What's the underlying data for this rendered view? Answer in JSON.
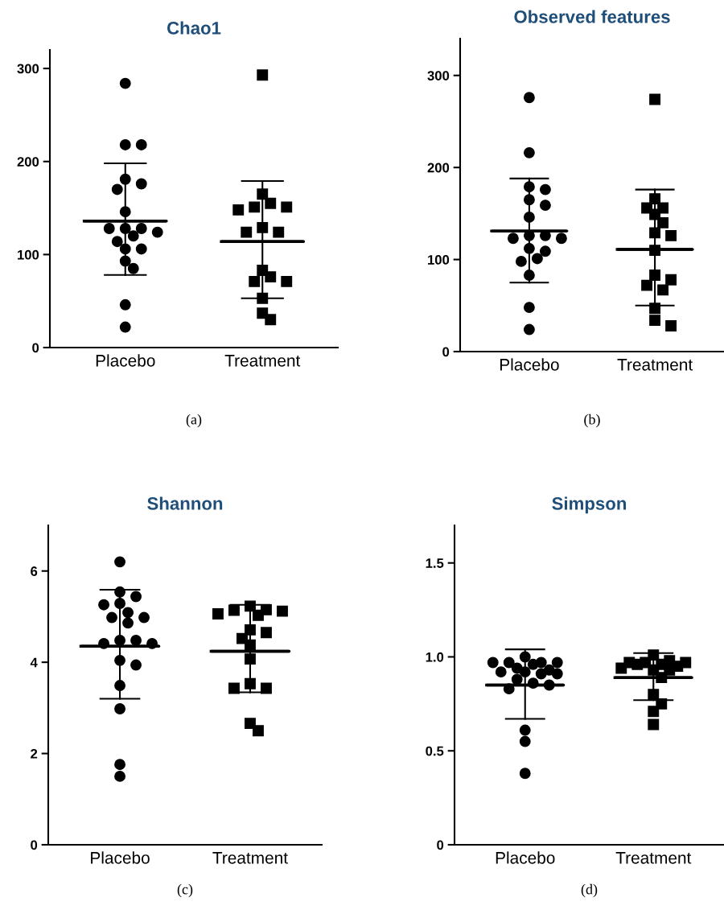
{
  "chart_data": [
    {
      "type": "scatter",
      "title": "Chao1",
      "categories": [
        "Placebo",
        "Treatment"
      ],
      "ylim": [
        0,
        320
      ],
      "yticks": [
        0,
        100,
        200,
        300
      ],
      "annotations": [
        "(a)"
      ],
      "series": [
        {
          "marker": "circle",
          "color": "#000000",
          "x": [
            "Placebo",
            "Placebo",
            "Placebo",
            "Placebo",
            "Placebo",
            "Placebo",
            "Placebo",
            "Placebo",
            "Placebo",
            "Placebo",
            "Placebo",
            "Placebo",
            "Placebo",
            "Placebo",
            "Placebo",
            "Placebo",
            "Placebo",
            "Placebo",
            "Placebo"
          ],
          "values": [
            284,
            218,
            218,
            181,
            176,
            170,
            146,
            128,
            128,
            128,
            124,
            120,
            114,
            106,
            106,
            93,
            85,
            46,
            22
          ]
        },
        {
          "marker": "square",
          "color": "#000000",
          "x": [
            "Treatment",
            "Treatment",
            "Treatment",
            "Treatment",
            "Treatment",
            "Treatment",
            "Treatment",
            "Treatment",
            "Treatment",
            "Treatment",
            "Treatment",
            "Treatment",
            "Treatment",
            "Treatment",
            "Treatment",
            "Treatment"
          ],
          "values": [
            293,
            165,
            155,
            151,
            151,
            148,
            129,
            124,
            124,
            83,
            76,
            71,
            71,
            53,
            37,
            30
          ]
        },
        {
          "type": "box",
          "color": "#000000",
          "boxes": [
            {
              "low": 78,
              "q1": 136,
              "median": 136,
              "q3": 136,
              "high": 198
            },
            {
              "low": 53,
              "q1": 114,
              "median": 114,
              "q3": 114,
              "high": 179
            }
          ]
        }
      ]
    },
    {
      "type": "scatter",
      "title": "Observed features",
      "categories": [
        "Placebo",
        "Treatment"
      ],
      "ylim": [
        0,
        340
      ],
      "yticks": [
        0,
        100,
        200,
        300
      ],
      "annotations": [
        "(b)"
      ],
      "series": [
        {
          "marker": "circle",
          "color": "#000000",
          "x": [
            "Placebo",
            "Placebo",
            "Placebo",
            "Placebo",
            "Placebo",
            "Placebo",
            "Placebo",
            "Placebo",
            "Placebo",
            "Placebo",
            "Placebo",
            "Placebo",
            "Placebo",
            "Placebo",
            "Placebo",
            "Placebo",
            "Placebo",
            "Placebo"
          ],
          "values": [
            276,
            216,
            179,
            176,
            165,
            159,
            146,
            126,
            126,
            123,
            123,
            112,
            109,
            101,
            98,
            83,
            48,
            24
          ]
        },
        {
          "marker": "square",
          "color": "#000000",
          "x": [
            "Treatment",
            "Treatment",
            "Treatment",
            "Treatment",
            "Treatment",
            "Treatment",
            "Treatment",
            "Treatment",
            "Treatment",
            "Treatment",
            "Treatment",
            "Treatment",
            "Treatment",
            "Treatment",
            "Treatment",
            "Treatment"
          ],
          "values": [
            274,
            166,
            156,
            156,
            149,
            140,
            129,
            126,
            110,
            83,
            78,
            72,
            67,
            47,
            34,
            28
          ]
        },
        {
          "type": "box",
          "color": "#000000",
          "boxes": [
            {
              "low": 75,
              "q1": 131,
              "median": 131,
              "q3": 131,
              "high": 188
            },
            {
              "low": 50,
              "q1": 111,
              "median": 111,
              "q3": 111,
              "high": 176
            }
          ]
        }
      ]
    },
    {
      "type": "scatter",
      "title": "Shannon",
      "categories": [
        "Placebo",
        "Treatment"
      ],
      "ylim": [
        0,
        7
      ],
      "yticks": [
        0,
        2,
        4,
        6
      ],
      "annotations": [
        "(c)"
      ],
      "series": [
        {
          "marker": "circle",
          "color": "#000000",
          "x": [
            "Placebo",
            "Placebo",
            "Placebo",
            "Placebo",
            "Placebo",
            "Placebo",
            "Placebo",
            "Placebo",
            "Placebo",
            "Placebo",
            "Placebo",
            "Placebo",
            "Placebo",
            "Placebo",
            "Placebo",
            "Placebo",
            "Placebo",
            "Placebo",
            "Placebo"
          ],
          "values": [
            6.2,
            5.54,
            5.44,
            5.29,
            5.26,
            5.09,
            4.98,
            4.98,
            4.86,
            4.48,
            4.48,
            4.41,
            4.41,
            4.04,
            3.94,
            3.49,
            2.98,
            1.76,
            1.5
          ]
        },
        {
          "marker": "square",
          "color": "#000000",
          "x": [
            "Treatment",
            "Treatment",
            "Treatment",
            "Treatment",
            "Treatment",
            "Treatment",
            "Treatment",
            "Treatment",
            "Treatment",
            "Treatment",
            "Treatment",
            "Treatment",
            "Treatment",
            "Treatment",
            "Treatment",
            "Treatment"
          ],
          "values": [
            5.23,
            5.15,
            5.14,
            5.12,
            5.06,
            5.03,
            4.71,
            4.65,
            4.52,
            4.38,
            4.07,
            3.53,
            3.43,
            3.43,
            2.66,
            2.5
          ]
        },
        {
          "type": "box",
          "color": "#000000",
          "boxes": [
            {
              "low": 3.2,
              "q1": 4.35,
              "median": 4.35,
              "q3": 4.35,
              "high": 5.59
            },
            {
              "low": 3.34,
              "q1": 4.24,
              "median": 4.24,
              "q3": 4.24,
              "high": 5.26
            }
          ]
        }
      ]
    },
    {
      "type": "scatter",
      "title": "Simpson",
      "categories": [
        "Placebo",
        "Treatment"
      ],
      "ylim": [
        0,
        1.7
      ],
      "yticks": [
        0,
        0.5,
        {
          "value": 1.0,
          "label": "1.0"
        },
        1.5
      ],
      "annotations": [
        "(d)"
      ],
      "series": [
        {
          "marker": "circle",
          "color": "#000000",
          "x": [
            "Placebo",
            "Placebo",
            "Placebo",
            "Placebo",
            "Placebo",
            "Placebo",
            "Placebo",
            "Placebo",
            "Placebo",
            "Placebo",
            "Placebo",
            "Placebo",
            "Placebo",
            "Placebo",
            "Placebo",
            "Placebo",
            "Placebo",
            "Placebo",
            "Placebo"
          ],
          "values": [
            1.0,
            0.97,
            0.97,
            0.97,
            0.97,
            0.96,
            0.94,
            0.93,
            0.92,
            0.92,
            0.91,
            0.91,
            0.88,
            0.86,
            0.85,
            0.83,
            0.61,
            0.55,
            0.38
          ]
        },
        {
          "marker": "square",
          "color": "#000000",
          "x": [
            "Treatment",
            "Treatment",
            "Treatment",
            "Treatment",
            "Treatment",
            "Treatment",
            "Treatment",
            "Treatment",
            "Treatment",
            "Treatment",
            "Treatment",
            "Treatment",
            "Treatment",
            "Treatment",
            "Treatment",
            "Treatment"
          ],
          "values": [
            1.01,
            0.98,
            0.97,
            0.97,
            0.97,
            0.96,
            0.96,
            0.95,
            0.94,
            0.93,
            0.93,
            0.89,
            0.8,
            0.75,
            0.71,
            0.64
          ]
        },
        {
          "type": "box",
          "color": "#000000",
          "boxes": [
            {
              "low": 0.67,
              "q1": 0.85,
              "median": 0.85,
              "q3": 0.85,
              "high": 1.04
            },
            {
              "low": 0.77,
              "q1": 0.89,
              "median": 0.89,
              "q3": 0.89,
              "high": 1.02
            }
          ]
        }
      ]
    }
  ]
}
